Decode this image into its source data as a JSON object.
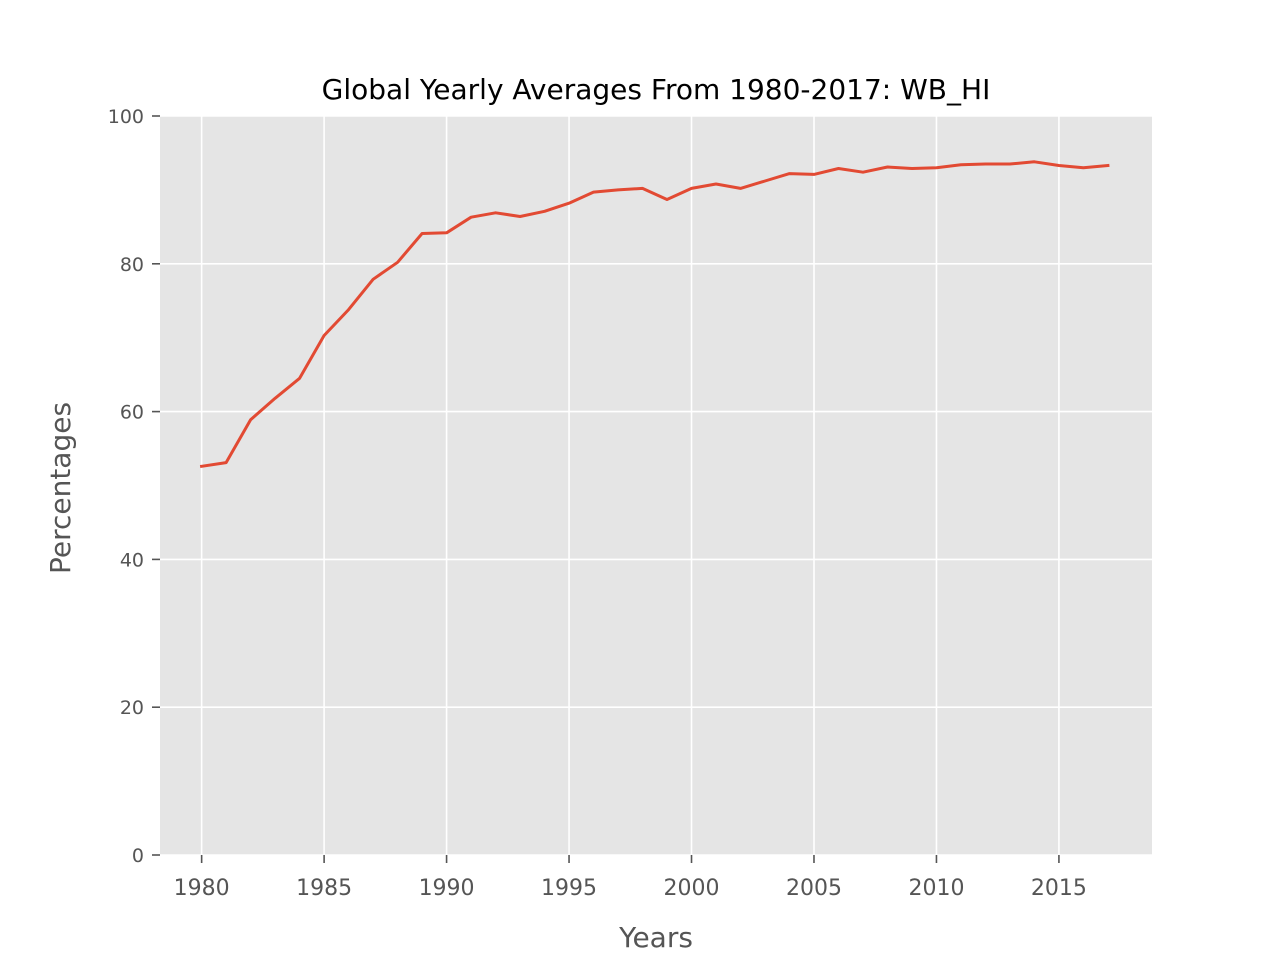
{
  "chart_data": {
    "type": "line",
    "title": "Global Yearly Averages From 1980-2017: WB_HI",
    "xlabel": "Years",
    "ylabel": "Percentages",
    "xlim": [
      1978.3,
      2018.8
    ],
    "ylim": [
      0,
      100
    ],
    "xticks": [
      1980,
      1985,
      1990,
      1995,
      2000,
      2005,
      2010,
      2015
    ],
    "xtick_labels": [
      "1980",
      "1985",
      "1990",
      "1995",
      "2000",
      "2005",
      "2010",
      "2015"
    ],
    "yticks": [
      0,
      20,
      40,
      60,
      80,
      100
    ],
    "ytick_labels": [
      "0",
      "20",
      "40",
      "60",
      "80",
      "100"
    ],
    "grid": true,
    "background": "#e5e5e5",
    "series": [
      {
        "color": "#e24a33",
        "x": [
          1980,
          1981,
          1982,
          1983,
          1984,
          1985,
          1986,
          1987,
          1988,
          1989,
          1990,
          1991,
          1992,
          1993,
          1994,
          1995,
          1996,
          1997,
          1998,
          1999,
          2000,
          2001,
          2002,
          2003,
          2004,
          2005,
          2006,
          2007,
          2008,
          2009,
          2010,
          2011,
          2012,
          2013,
          2014,
          2015,
          2016,
          2017
        ],
        "values": [
          52.6,
          53.1,
          58.9,
          61.8,
          64.5,
          70.3,
          73.8,
          77.9,
          80.2,
          84.1,
          84.2,
          86.3,
          86.9,
          86.4,
          87.1,
          88.2,
          89.7,
          90.0,
          90.2,
          88.7,
          90.2,
          90.8,
          90.2,
          91.2,
          92.2,
          92.1,
          92.9,
          92.4,
          93.1,
          92.9,
          93.0,
          93.4,
          93.5,
          93.5,
          93.8,
          93.3,
          93.0,
          93.3
        ]
      }
    ]
  }
}
